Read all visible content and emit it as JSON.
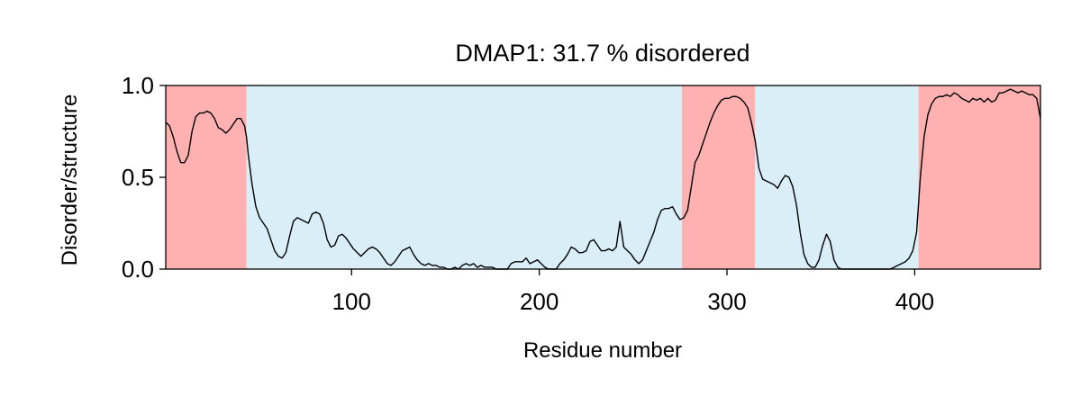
{
  "chart_data": {
    "type": "line",
    "title": "DMAP1: 31.7 % disordered",
    "xlabel": "Residue number",
    "ylabel": "Disorder/structure",
    "xlim": [
      1,
      467
    ],
    "ylim": [
      0.0,
      1.0
    ],
    "xticks": [
      100,
      200,
      300,
      400
    ],
    "xtick_labels": [
      "100",
      "200",
      "300",
      "400"
    ],
    "yticks": [
      0.0,
      0.5,
      1.0
    ],
    "ytick_labels": [
      "0.0",
      "0.5",
      "1.0"
    ],
    "grid": false,
    "legend": "none",
    "regions": [
      {
        "state": "disordered",
        "start": 1,
        "end": 44,
        "color": "#ffb0b0"
      },
      {
        "state": "structured",
        "start": 44,
        "end": 276,
        "color": "#d9eef7"
      },
      {
        "state": "disordered",
        "start": 276,
        "end": 315,
        "color": "#ffb0b0"
      },
      {
        "state": "structured",
        "start": 315,
        "end": 402,
        "color": "#d9eef7"
      },
      {
        "state": "disordered",
        "start": 402,
        "end": 467,
        "color": "#ffb0b0"
      }
    ],
    "series": [
      {
        "color": "#000000",
        "points": [
          [
            1,
            0.8
          ],
          [
            3,
            0.78
          ],
          [
            5,
            0.72
          ],
          [
            7,
            0.64
          ],
          [
            9,
            0.58
          ],
          [
            11,
            0.58
          ],
          [
            13,
            0.62
          ],
          [
            15,
            0.75
          ],
          [
            17,
            0.83
          ],
          [
            19,
            0.85
          ],
          [
            21,
            0.85
          ],
          [
            23,
            0.86
          ],
          [
            25,
            0.85
          ],
          [
            27,
            0.82
          ],
          [
            29,
            0.77
          ],
          [
            31,
            0.76
          ],
          [
            33,
            0.74
          ],
          [
            35,
            0.76
          ],
          [
            37,
            0.79
          ],
          [
            39,
            0.82
          ],
          [
            41,
            0.82
          ],
          [
            43,
            0.78
          ],
          [
            44,
            0.72
          ],
          [
            45,
            0.62
          ],
          [
            47,
            0.46
          ],
          [
            49,
            0.34
          ],
          [
            51,
            0.28
          ],
          [
            53,
            0.25
          ],
          [
            55,
            0.22
          ],
          [
            57,
            0.16
          ],
          [
            59,
            0.1
          ],
          [
            61,
            0.07
          ],
          [
            63,
            0.06
          ],
          [
            65,
            0.09
          ],
          [
            67,
            0.18
          ],
          [
            69,
            0.26
          ],
          [
            71,
            0.28
          ],
          [
            73,
            0.27
          ],
          [
            75,
            0.26
          ],
          [
            77,
            0.25
          ],
          [
            79,
            0.3
          ],
          [
            81,
            0.31
          ],
          [
            83,
            0.3
          ],
          [
            85,
            0.25
          ],
          [
            87,
            0.16
          ],
          [
            89,
            0.12
          ],
          [
            91,
            0.13
          ],
          [
            93,
            0.18
          ],
          [
            95,
            0.19
          ],
          [
            97,
            0.17
          ],
          [
            99,
            0.14
          ],
          [
            101,
            0.11
          ],
          [
            103,
            0.09
          ],
          [
            105,
            0.07
          ],
          [
            107,
            0.09
          ],
          [
            109,
            0.11
          ],
          [
            111,
            0.12
          ],
          [
            113,
            0.11
          ],
          [
            115,
            0.09
          ],
          [
            117,
            0.06
          ],
          [
            119,
            0.03
          ],
          [
            121,
            0.02
          ],
          [
            123,
            0.04
          ],
          [
            125,
            0.07
          ],
          [
            127,
            0.1
          ],
          [
            129,
            0.11
          ],
          [
            131,
            0.12
          ],
          [
            133,
            0.08
          ],
          [
            135,
            0.05
          ],
          [
            137,
            0.03
          ],
          [
            139,
            0.02
          ],
          [
            141,
            0.03
          ],
          [
            143,
            0.02
          ],
          [
            145,
            0.02
          ],
          [
            147,
            0.01
          ],
          [
            149,
            0.01
          ],
          [
            151,
            0.0
          ],
          [
            153,
            0.0
          ],
          [
            155,
            0.01
          ],
          [
            157,
            0.0
          ],
          [
            159,
            0.02
          ],
          [
            161,
            0.03
          ],
          [
            163,
            0.02
          ],
          [
            165,
            0.03
          ],
          [
            167,
            0.01
          ],
          [
            169,
            0.02
          ],
          [
            171,
            0.01
          ],
          [
            173,
            0.01
          ],
          [
            175,
            0.01
          ],
          [
            177,
            0.0
          ],
          [
            179,
            0.0
          ],
          [
            181,
            0.0
          ],
          [
            183,
            0.0
          ],
          [
            185,
            0.03
          ],
          [
            187,
            0.04
          ],
          [
            189,
            0.04
          ],
          [
            191,
            0.04
          ],
          [
            193,
            0.06
          ],
          [
            195,
            0.03
          ],
          [
            197,
            0.04
          ],
          [
            199,
            0.05
          ],
          [
            201,
            0.03
          ],
          [
            203,
            0.01
          ],
          [
            205,
            0.0
          ],
          [
            207,
            0.0
          ],
          [
            209,
            0.0
          ],
          [
            211,
            0.03
          ],
          [
            213,
            0.05
          ],
          [
            215,
            0.08
          ],
          [
            217,
            0.12
          ],
          [
            219,
            0.11
          ],
          [
            221,
            0.09
          ],
          [
            223,
            0.09
          ],
          [
            225,
            0.1
          ],
          [
            227,
            0.15
          ],
          [
            229,
            0.16
          ],
          [
            231,
            0.13
          ],
          [
            233,
            0.1
          ],
          [
            235,
            0.1
          ],
          [
            237,
            0.11
          ],
          [
            239,
            0.1
          ],
          [
            241,
            0.12
          ],
          [
            243,
            0.26
          ],
          [
            245,
            0.12
          ],
          [
            247,
            0.1
          ],
          [
            249,
            0.08
          ],
          [
            251,
            0.05
          ],
          [
            253,
            0.03
          ],
          [
            255,
            0.05
          ],
          [
            257,
            0.1
          ],
          [
            259,
            0.15
          ],
          [
            261,
            0.2
          ],
          [
            263,
            0.27
          ],
          [
            265,
            0.32
          ],
          [
            267,
            0.33
          ],
          [
            269,
            0.33
          ],
          [
            271,
            0.34
          ],
          [
            273,
            0.3
          ],
          [
            275,
            0.27
          ],
          [
            277,
            0.28
          ],
          [
            279,
            0.32
          ],
          [
            281,
            0.45
          ],
          [
            283,
            0.58
          ],
          [
            285,
            0.62
          ],
          [
            287,
            0.68
          ],
          [
            289,
            0.74
          ],
          [
            291,
            0.8
          ],
          [
            293,
            0.85
          ],
          [
            295,
            0.89
          ],
          [
            297,
            0.92
          ],
          [
            299,
            0.93
          ],
          [
            301,
            0.93
          ],
          [
            303,
            0.94
          ],
          [
            305,
            0.94
          ],
          [
            307,
            0.93
          ],
          [
            309,
            0.91
          ],
          [
            311,
            0.88
          ],
          [
            313,
            0.8
          ],
          [
            315,
            0.7
          ],
          [
            317,
            0.55
          ],
          [
            319,
            0.49
          ],
          [
            321,
            0.48
          ],
          [
            323,
            0.47
          ],
          [
            325,
            0.46
          ],
          [
            327,
            0.44
          ],
          [
            329,
            0.48
          ],
          [
            331,
            0.51
          ],
          [
            333,
            0.5
          ],
          [
            335,
            0.45
          ],
          [
            337,
            0.35
          ],
          [
            339,
            0.2
          ],
          [
            341,
            0.08
          ],
          [
            343,
            0.03
          ],
          [
            345,
            0.01
          ],
          [
            347,
            0.01
          ],
          [
            349,
            0.05
          ],
          [
            351,
            0.13
          ],
          [
            353,
            0.19
          ],
          [
            355,
            0.15
          ],
          [
            357,
            0.05
          ],
          [
            359,
            0.01
          ],
          [
            361,
            0.0
          ],
          [
            363,
            0.0
          ],
          [
            365,
            0.0
          ],
          [
            367,
            0.0
          ],
          [
            369,
            0.0
          ],
          [
            371,
            0.0
          ],
          [
            373,
            0.0
          ],
          [
            375,
            0.0
          ],
          [
            377,
            0.0
          ],
          [
            379,
            0.0
          ],
          [
            381,
            0.0
          ],
          [
            383,
            0.0
          ],
          [
            385,
            0.0
          ],
          [
            387,
            0.0
          ],
          [
            389,
            0.01
          ],
          [
            391,
            0.02
          ],
          [
            393,
            0.03
          ],
          [
            395,
            0.04
          ],
          [
            397,
            0.06
          ],
          [
            399,
            0.1
          ],
          [
            401,
            0.2
          ],
          [
            403,
            0.5
          ],
          [
            405,
            0.72
          ],
          [
            407,
            0.84
          ],
          [
            409,
            0.9
          ],
          [
            411,
            0.93
          ],
          [
            413,
            0.94
          ],
          [
            415,
            0.94
          ],
          [
            417,
            0.95
          ],
          [
            419,
            0.94
          ],
          [
            421,
            0.96
          ],
          [
            423,
            0.95
          ],
          [
            425,
            0.93
          ],
          [
            427,
            0.92
          ],
          [
            429,
            0.91
          ],
          [
            431,
            0.93
          ],
          [
            433,
            0.92
          ],
          [
            435,
            0.93
          ],
          [
            437,
            0.91
          ],
          [
            439,
            0.93
          ],
          [
            441,
            0.91
          ],
          [
            443,
            0.92
          ],
          [
            445,
            0.96
          ],
          [
            447,
            0.96
          ],
          [
            449,
            0.97
          ],
          [
            451,
            0.98
          ],
          [
            453,
            0.97
          ],
          [
            455,
            0.96
          ],
          [
            457,
            0.97
          ],
          [
            459,
            0.96
          ],
          [
            461,
            0.95
          ],
          [
            463,
            0.95
          ],
          [
            465,
            0.93
          ],
          [
            467,
            0.82
          ]
        ]
      }
    ]
  }
}
